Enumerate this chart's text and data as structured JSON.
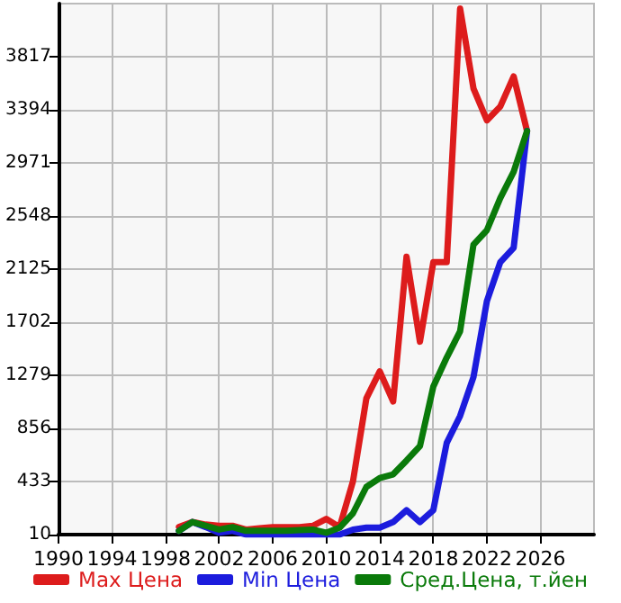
{
  "chart_data": {
    "type": "line",
    "x": [
      1999,
      2000,
      2001,
      2002,
      2003,
      2004,
      2005,
      2006,
      2007,
      2008,
      2009,
      2010,
      2011,
      2012,
      2013,
      2014,
      2015,
      2016,
      2017,
      2018,
      2019,
      2020,
      2021,
      2022,
      2023,
      2024,
      2025
    ],
    "series": [
      {
        "name": "Max Цена",
        "color": "#dd1c1c",
        "values": [
          70,
          110,
          90,
          80,
          80,
          50,
          60,
          70,
          70,
          70,
          80,
          135,
          70,
          435,
          1095,
          1310,
          1070,
          2224,
          1547,
          2180,
          2180,
          4200,
          3563,
          3310,
          3420,
          3660,
          3225
        ]
      },
      {
        "name": "Min Цена",
        "color": "#1c1cdd",
        "values": [
          40,
          110,
          70,
          25,
          40,
          10,
          10,
          10,
          10,
          10,
          10,
          10,
          10,
          50,
          65,
          65,
          110,
          205,
          110,
          205,
          740,
          955,
          1265,
          1870,
          2180,
          2295,
          3225
        ]
      },
      {
        "name": "Сред.Цена, т.йен",
        "color": "#0a7a0a",
        "values": [
          40,
          110,
          80,
          50,
          70,
          40,
          40,
          40,
          40,
          45,
          50,
          25,
          65,
          180,
          390,
          460,
          490,
          600,
          715,
          1190,
          1420,
          1630,
          2320,
          2435,
          2690,
          2900,
          3225
        ]
      }
    ],
    "xlim": [
      1990,
      2030
    ],
    "xticks": [
      1990,
      1994,
      1998,
      2002,
      2006,
      2010,
      2014,
      2018,
      2022,
      2026
    ],
    "ylim": [
      10,
      4240
    ],
    "yticks": [
      10,
      433,
      856,
      1279,
      1702,
      2125,
      2548,
      2971,
      3394,
      3817
    ],
    "grid": true,
    "legend": "bottom",
    "marker": "none",
    "line_style": "solid"
  }
}
